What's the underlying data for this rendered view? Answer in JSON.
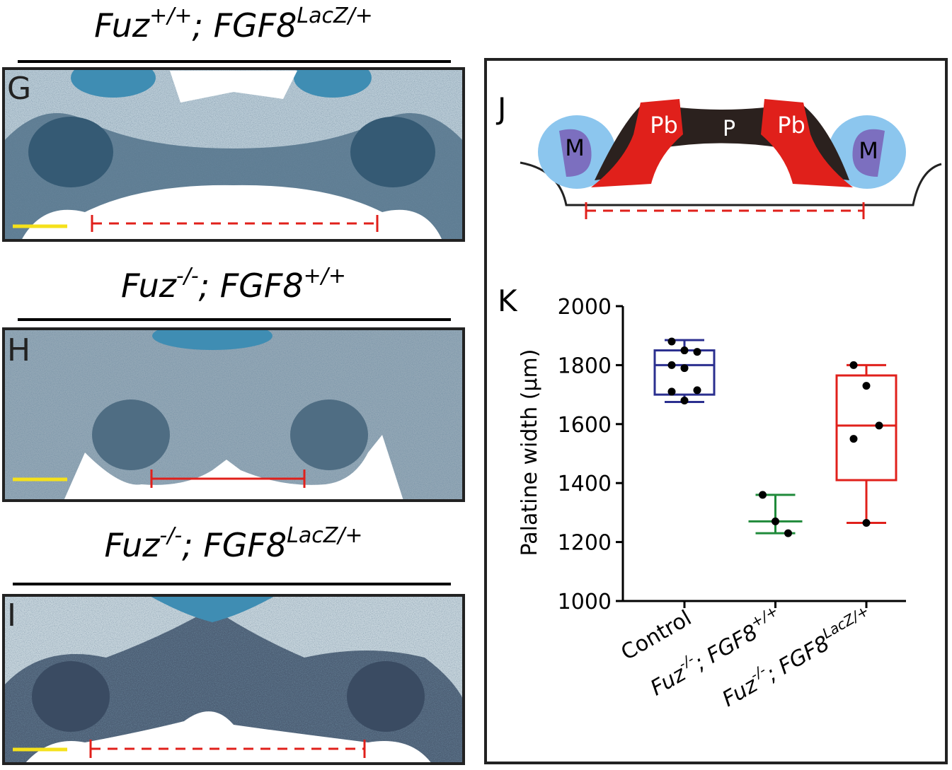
{
  "panels": [
    {
      "letter": "G",
      "title": [
        "Fuz",
        "+/+",
        "; FGF8",
        "LacZ/+"
      ]
    },
    {
      "letter": "H",
      "title": [
        "Fuz",
        "-/-",
        "; FGF8",
        "+/+"
      ]
    },
    {
      "letter": "I",
      "title": [
        "Fuz",
        "-/-",
        "; FGF8",
        "LacZ/+"
      ]
    }
  ],
  "diagram": {
    "letter": "J",
    "labels": [
      "M",
      "Pb",
      "P",
      "Pb",
      "M"
    ]
  },
  "chart_data": {
    "type": "box",
    "letter": "K",
    "ylabel": "Palatine width (µm)",
    "categories": [
      [
        "Control"
      ],
      [
        "Fuz",
        "-/-",
        "; FGF8",
        "+/+"
      ],
      [
        "Fuz",
        "-/-",
        "; FGF8",
        "LacZ/+"
      ]
    ],
    "boxes": [
      {
        "color": "#2b2f8f",
        "min": 1675,
        "q1": 1700,
        "median": 1800,
        "q3": 1850,
        "max": 1885,
        "points": [
          1880,
          1850,
          1845,
          1800,
          1790,
          1715,
          1710,
          1680
        ]
      },
      {
        "color": "#1f8a3a",
        "min": 1230,
        "median": 1270,
        "max": 1360,
        "points": [
          1360,
          1270,
          1230
        ]
      },
      {
        "color": "#e0201b",
        "min": 1265,
        "q1": 1410,
        "median": 1595,
        "q3": 1765,
        "max": 1800,
        "points": [
          1800,
          1730,
          1595,
          1550,
          1265
        ]
      }
    ],
    "ylim": [
      1000,
      2000
    ],
    "yticks": [
      1000,
      1200,
      1400,
      1600,
      1800,
      2000
    ]
  }
}
